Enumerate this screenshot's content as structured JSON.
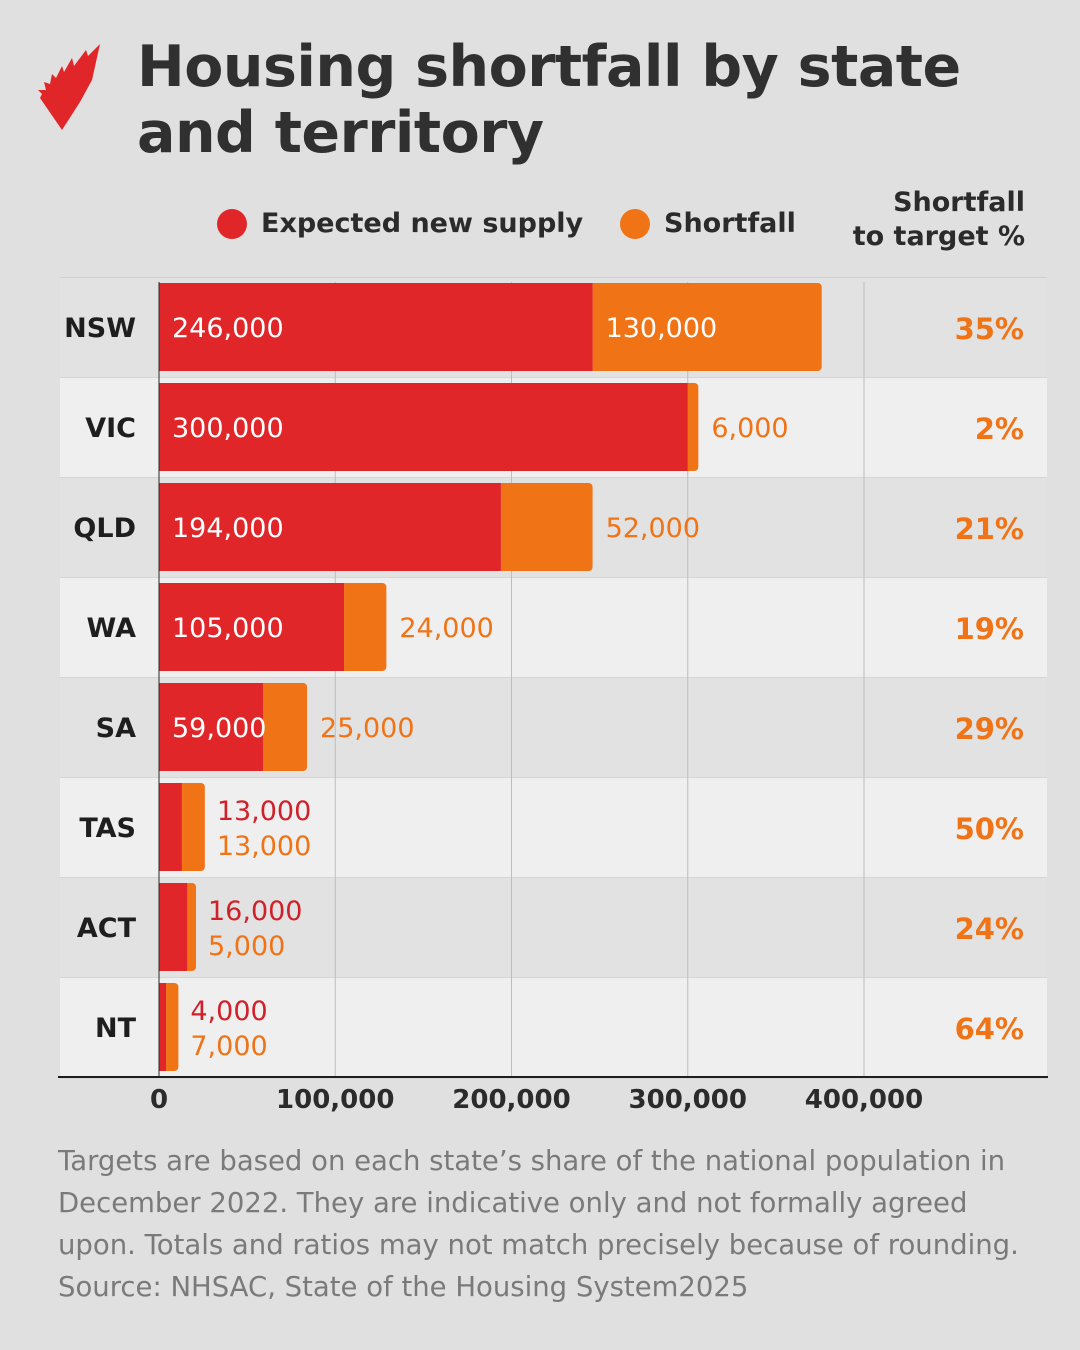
{
  "title": "Housing shortfall by state and territory",
  "legend": [
    {
      "label": "Expected new supply",
      "color": "#e1262a"
    },
    {
      "label": "Shortfall",
      "color": "#f07316"
    }
  ],
  "column_header": [
    "Shortfall",
    "to target %"
  ],
  "note": "Targets are based on each state’s share of the national population in December 2022. They are indicative only and not formally agreed upon. Totals and ratios may not match precisely because of rounding.",
  "source": "Source: NHSAC, State of the Housing System2025",
  "chart_data": {
    "type": "bar",
    "orientation": "horizontal",
    "stacked": true,
    "title": "Housing shortfall by state and territory",
    "categories": [
      "NSW",
      "VIC",
      "QLD",
      "WA",
      "SA",
      "TAS",
      "ACT",
      "NT"
    ],
    "series": [
      {
        "name": "Expected new supply",
        "color": "#e1262a",
        "values": [
          246000,
          300000,
          194000,
          105000,
          59000,
          13000,
          16000,
          4000
        ],
        "labels": [
          "246,000",
          "300,000",
          "194,000",
          "105,000",
          "59,000",
          "13,000",
          "16,000",
          "4,000"
        ]
      },
      {
        "name": "Shortfall",
        "color": "#f07316",
        "values": [
          130000,
          6000,
          52000,
          24000,
          25000,
          13000,
          5000,
          7000
        ],
        "labels": [
          "130,000",
          "6,000",
          "52,000",
          "24,000",
          "25,000",
          "13,000",
          "5,000",
          "7,000"
        ]
      }
    ],
    "shortfall_pct": [
      "35%",
      "2%",
      "21%",
      "19%",
      "29%",
      "50%",
      "24%",
      "64%"
    ],
    "label_mode": [
      "inside",
      "inside",
      "inside",
      "inside",
      "inside",
      "stacked",
      "stacked",
      "stacked"
    ],
    "xlim": [
      0,
      400000
    ],
    "xticks": [
      0,
      100000,
      200000,
      300000,
      400000
    ],
    "xtick_labels": [
      "0",
      "100,000",
      "200,000",
      "300,000",
      "400,000"
    ],
    "grid": true
  }
}
